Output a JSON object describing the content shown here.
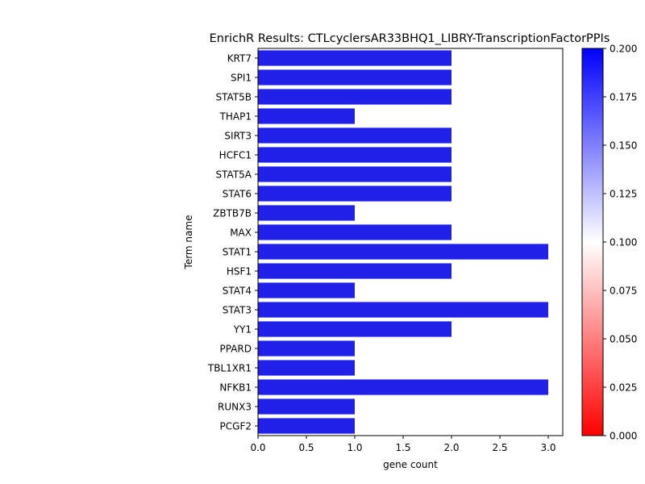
{
  "chart_data": {
    "type": "bar",
    "orientation": "horizontal",
    "title": "EnrichR Results: CTLcyclersAR33BHQ1_LIBRY-TranscriptionFactorPPIs",
    "xlabel": "gene count",
    "ylabel": "Term name",
    "xlim": [
      0,
      3.15
    ],
    "xticks": [
      "0.0",
      "0.5",
      "1.0",
      "1.5",
      "2.0",
      "2.5",
      "3.0"
    ],
    "grid": false,
    "bar_color": "#2020e8",
    "categories": [
      "KRT7",
      "SPI1",
      "STAT5B",
      "THAP1",
      "SIRT3",
      "HCFC1",
      "STAT5A",
      "STAT6",
      "ZBTB7B",
      "MAX",
      "STAT1",
      "HSF1",
      "STAT4",
      "STAT3",
      "YY1",
      "PPARD",
      "TBL1XR1",
      "NFKB1",
      "RUNX3",
      "PCGF2"
    ],
    "values": [
      2,
      2,
      2,
      1,
      2,
      2,
      2,
      2,
      1,
      2,
      3,
      2,
      1,
      3,
      2,
      1,
      1,
      3,
      1,
      1
    ],
    "colorbar": {
      "range": [
        0,
        0.2
      ],
      "ticks": [
        "0.000",
        "0.025",
        "0.050",
        "0.075",
        "0.100",
        "0.125",
        "0.150",
        "0.175",
        "0.200"
      ],
      "colors": [
        "#ff0000",
        "#ffffff",
        "#0000ff"
      ]
    }
  }
}
